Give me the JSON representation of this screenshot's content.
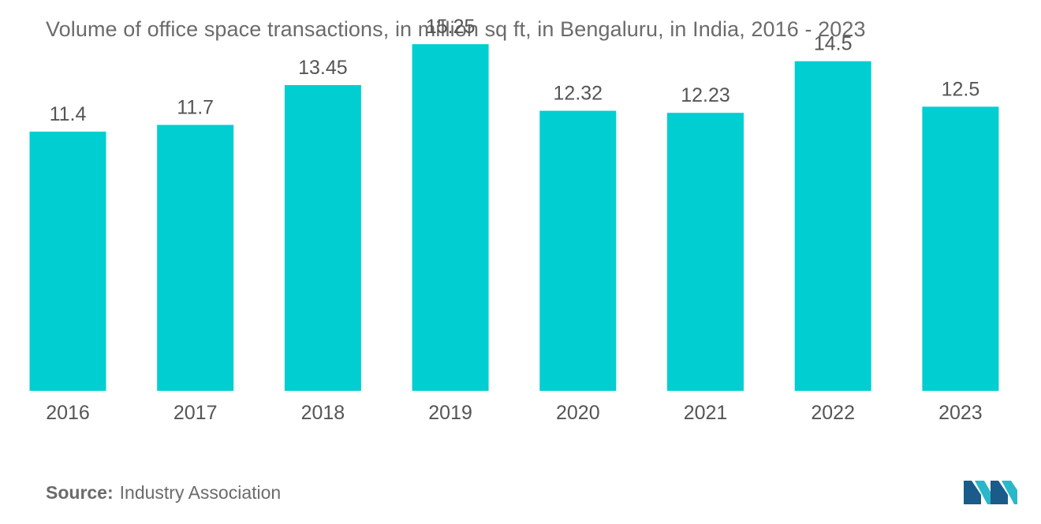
{
  "chart_data": {
    "type": "bar",
    "title": "Volume of office space transactions, in million sq ft, in Bengaluru, in India, 2016 - 2023",
    "categories": [
      "2016",
      "2017",
      "2018",
      "2019",
      "2020",
      "2021",
      "2022",
      "2023"
    ],
    "values": [
      11.4,
      11.7,
      13.45,
      15.25,
      12.32,
      12.23,
      14.5,
      12.5
    ],
    "value_labels": [
      "11.4",
      "11.7",
      "13.45",
      "15.25",
      "12.32",
      "12.23",
      "14.5",
      "12.5"
    ],
    "xlabel": "",
    "ylabel": "",
    "grid": false,
    "legend": "none",
    "bar_color": "#00CED1"
  },
  "source": {
    "label": "Source:",
    "text": "Industry Association"
  },
  "colors": {
    "bar": "#00CED1",
    "text": "#555555",
    "title": "#6b6b6b",
    "logo_dark": "#1a5b8a",
    "logo_light": "#2ab7c9"
  },
  "logo": {
    "icon": "mordor-logo-icon"
  }
}
